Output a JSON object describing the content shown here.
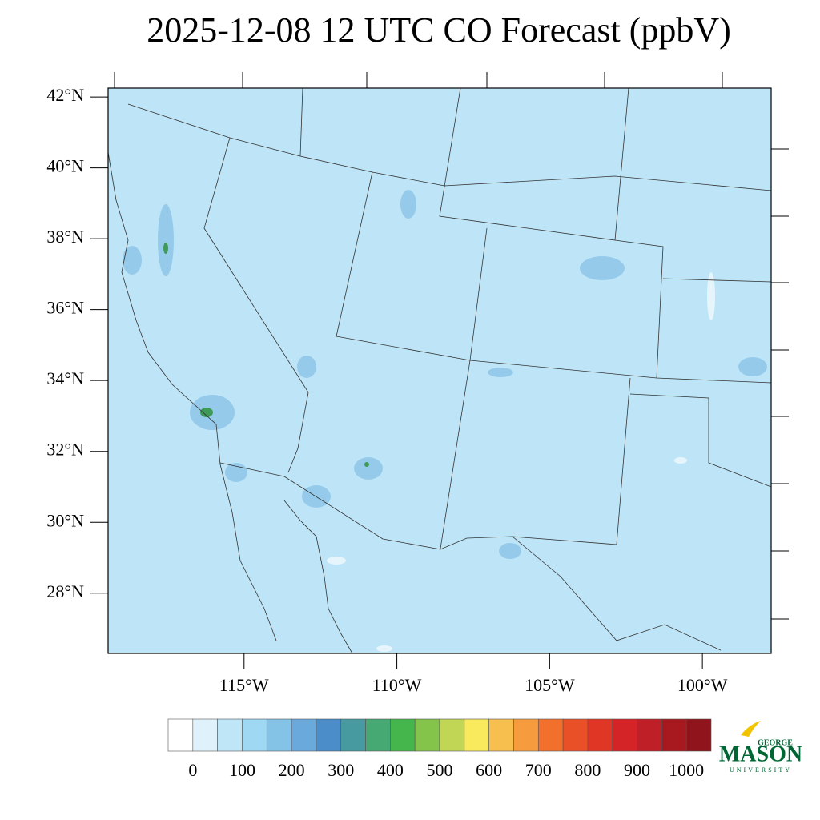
{
  "title": "2025-12-08 12 UTC CO Forecast (ppbV)",
  "map": {
    "lat_range": [
      26.3,
      42.25
    ],
    "lon_range": [
      -119.45,
      -97.75
    ],
    "lat_ticks": [
      {
        "value": 42,
        "label": "42°N"
      },
      {
        "value": 40,
        "label": "40°N"
      },
      {
        "value": 38,
        "label": "38°N"
      },
      {
        "value": 36,
        "label": "36°N"
      },
      {
        "value": 34,
        "label": "34°N"
      },
      {
        "value": 32,
        "label": "32°N"
      },
      {
        "value": 30,
        "label": "30°N"
      },
      {
        "value": 28,
        "label": "28°N"
      }
    ],
    "lon_ticks": [
      {
        "value": -115,
        "label": "115°W"
      },
      {
        "value": -110,
        "label": "110°W"
      },
      {
        "value": -105,
        "label": "105°W"
      },
      {
        "value": -100,
        "label": "100°W"
      }
    ]
  },
  "colorbar": {
    "levels": [
      0,
      50,
      100,
      150,
      200,
      250,
      300,
      350,
      400,
      450,
      500,
      550,
      600,
      650,
      700,
      750,
      800,
      850,
      900,
      950,
      1000
    ],
    "colors": [
      "#ffffff",
      "#dff2fb",
      "#bfe6f7",
      "#9fd8f3",
      "#84c2e6",
      "#69a9dc",
      "#4a8dc9",
      "#479ba0",
      "#46a873",
      "#44b64c",
      "#84c44b",
      "#c2d655",
      "#f8e95d",
      "#f7c04e",
      "#f69b3e",
      "#f3702c",
      "#ea5028",
      "#e03626",
      "#d52428",
      "#bf1f26",
      "#a8191f",
      "#8f141b"
    ],
    "ticks": [
      0,
      100,
      200,
      300,
      400,
      500,
      600,
      700,
      800,
      900,
      1000
    ]
  },
  "logo": {
    "top": "GEORGE",
    "main": "MASON",
    "bottom": "UNIVERSITY"
  }
}
